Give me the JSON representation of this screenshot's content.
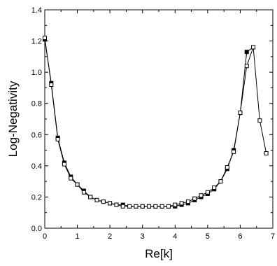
{
  "chart_data": {
    "type": "line",
    "title": "",
    "xlabel": "Re[k]",
    "ylabel": "Log-Negativity",
    "xlim": [
      0,
      7
    ],
    "ylim": [
      0,
      1.4
    ],
    "xticks": [
      0,
      1,
      2,
      3,
      4,
      5,
      6,
      7
    ],
    "yticks": [
      0.0,
      0.2,
      0.4,
      0.6,
      0.8,
      1.0,
      1.2,
      1.4
    ],
    "xtick_labels": [
      "0",
      "1",
      "2",
      "3",
      "4",
      "5",
      "6",
      "7"
    ],
    "ytick_labels": [
      "0.0",
      "0.2",
      "0.4",
      "0.6",
      "0.8",
      "1.0",
      "1.2",
      "1.4"
    ],
    "grid": false,
    "legend": "none",
    "series": [
      {
        "marker": "filled-square",
        "color": "#000000",
        "x": [
          0.0,
          0.2,
          0.4,
          0.6,
          0.8,
          1.0,
          1.2,
          1.4,
          1.6,
          1.8,
          2.0,
          2.2,
          2.4,
          2.6,
          2.8,
          3.0,
          3.2,
          3.4,
          3.6,
          3.8,
          4.0,
          4.2,
          4.4,
          4.6,
          4.8,
          5.0,
          5.2,
          5.4,
          5.6,
          5.8,
          6.0,
          6.2,
          6.4
        ],
        "y": [
          1.21,
          0.93,
          0.58,
          0.42,
          0.33,
          0.28,
          0.24,
          0.2,
          0.18,
          0.17,
          0.16,
          0.15,
          0.15,
          0.14,
          0.14,
          0.14,
          0.14,
          0.14,
          0.14,
          0.14,
          0.14,
          0.15,
          0.16,
          0.18,
          0.2,
          0.22,
          0.25,
          0.3,
          0.38,
          0.5,
          0.74,
          1.13,
          1.16
        ]
      },
      {
        "marker": "open-square",
        "color": "#000000",
        "x": [
          0.0,
          0.2,
          0.4,
          0.6,
          0.8,
          1.0,
          1.2,
          1.4,
          1.6,
          1.8,
          2.0,
          2.2,
          2.4,
          2.6,
          2.8,
          3.0,
          3.2,
          3.4,
          3.6,
          3.8,
          4.0,
          4.2,
          4.4,
          4.6,
          4.8,
          5.0,
          5.2,
          5.4,
          5.6,
          5.8,
          6.0,
          6.2,
          6.4,
          6.6,
          6.8
        ],
        "y": [
          1.22,
          0.92,
          0.57,
          0.41,
          0.32,
          0.28,
          0.23,
          0.2,
          0.18,
          0.17,
          0.16,
          0.15,
          0.14,
          0.14,
          0.14,
          0.14,
          0.14,
          0.14,
          0.14,
          0.14,
          0.15,
          0.16,
          0.17,
          0.19,
          0.21,
          0.23,
          0.26,
          0.3,
          0.39,
          0.49,
          0.74,
          1.04,
          1.16,
          0.69,
          0.48
        ]
      }
    ]
  }
}
